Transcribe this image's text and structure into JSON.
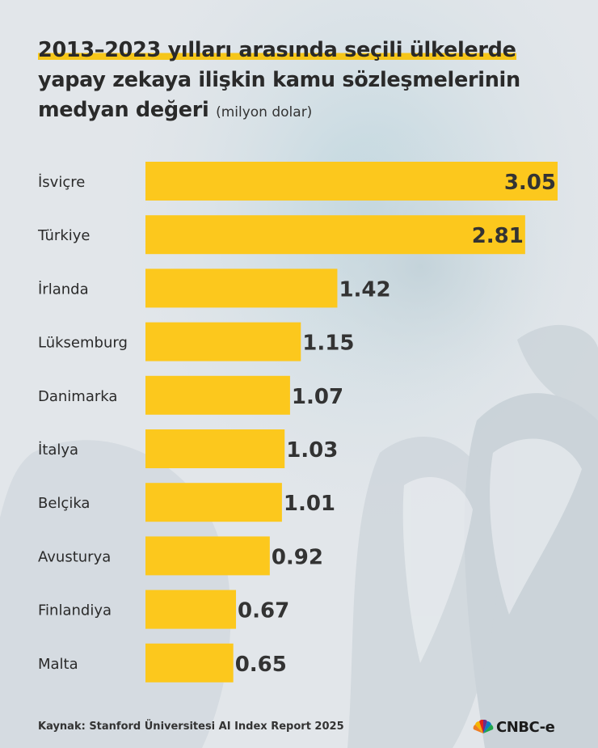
{
  "title": {
    "line1": "2013–2023 yılları arasında seçili ülkelerde",
    "line2": "yapay zekaya ilişkin kamu sözleşmelerinin",
    "line3": "medyan değeri",
    "unit": "(milyon dolar)"
  },
  "chart_data": {
    "type": "bar",
    "orientation": "horizontal",
    "title": "2013–2023 yılları arasında seçili ülkelerde yapay zekaya ilişkin kamu sözleşmelerinin medyan değeri",
    "unit": "(milyon dolar)",
    "categories": [
      "İsviçre",
      "Türkiye",
      "İrlanda",
      "Lüksemburg",
      "Danimarka",
      "İtalya",
      "Belçika",
      "Avusturya",
      "Finlandiya",
      "Malta"
    ],
    "values": [
      3.05,
      2.81,
      1.42,
      1.15,
      1.07,
      1.03,
      1.01,
      0.92,
      0.67,
      0.65
    ],
    "value_labels": [
      "3.05",
      "2.81",
      "1.42",
      "1.15",
      "1.07",
      "1.03",
      "1.01",
      "0.92",
      "0.67",
      "0.65"
    ],
    "xlim": [
      0,
      3.05
    ],
    "grid": false,
    "legend": "none",
    "bar_color": "#fcc81d",
    "label_color": "#333333"
  },
  "footer": {
    "source": "Kaynak: Stanford Üniversitesi AI Index Report 2025",
    "logo_text": "CNBC-e",
    "logo_icon": "peacock-icon"
  },
  "colors": {
    "accent": "#fcc81d",
    "text": "#2a2a2a"
  }
}
